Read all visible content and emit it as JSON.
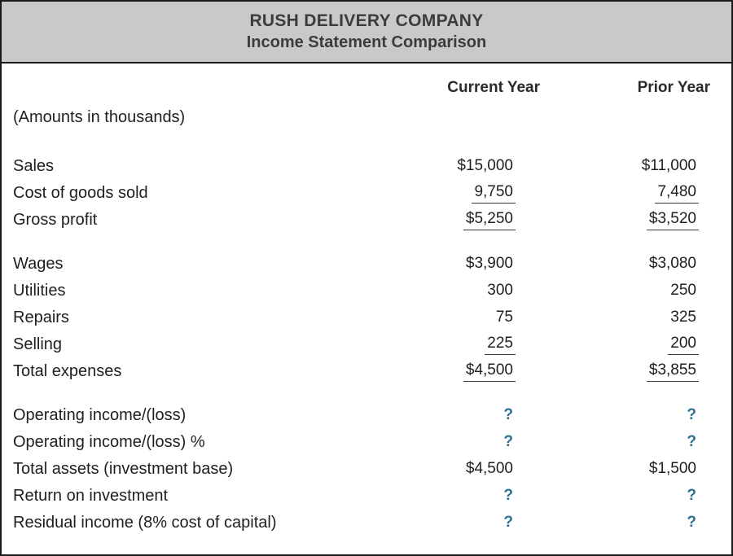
{
  "header": {
    "company": "RUSH DELIVERY COMPANY",
    "subtitle": "Income Statement Comparison"
  },
  "table": {
    "note": "(Amounts in thousands)",
    "columns": [
      "Current Year",
      "Prior Year"
    ],
    "rows": [
      {
        "label": "Sales",
        "current": "$15,000",
        "prior": "$11,000"
      },
      {
        "label": "Cost of goods sold",
        "current": "9,750",
        "prior": "7,480"
      },
      {
        "label": "Gross profit",
        "current": "$5,250",
        "prior": "$3,520"
      },
      {
        "label": "Wages",
        "current": "$3,900",
        "prior": "$3,080"
      },
      {
        "label": "Utilities",
        "current": "300",
        "prior": "250"
      },
      {
        "label": "Repairs",
        "current": "75",
        "prior": "325"
      },
      {
        "label": "Selling",
        "current": "225",
        "prior": "200"
      },
      {
        "label": "Total expenses",
        "current": "$4,500",
        "prior": "$3,855"
      },
      {
        "label": "Operating income/(loss)",
        "current": "?",
        "prior": "?"
      },
      {
        "label": "Operating income/(loss) %",
        "current": "?",
        "prior": "?"
      },
      {
        "label": "Total assets (investment base)",
        "current": "$4,500",
        "prior": "$1,500"
      },
      {
        "label": "Return on investment",
        "current": "?",
        "prior": "?"
      },
      {
        "label": "Residual income (8% cost of capital)",
        "current": "?",
        "prior": "?"
      }
    ],
    "colors": {
      "header_bg": "#c9c9c9",
      "border": "#1a1a1a",
      "text": "#1f1f1f",
      "unknown_value": "#2d7092"
    }
  }
}
